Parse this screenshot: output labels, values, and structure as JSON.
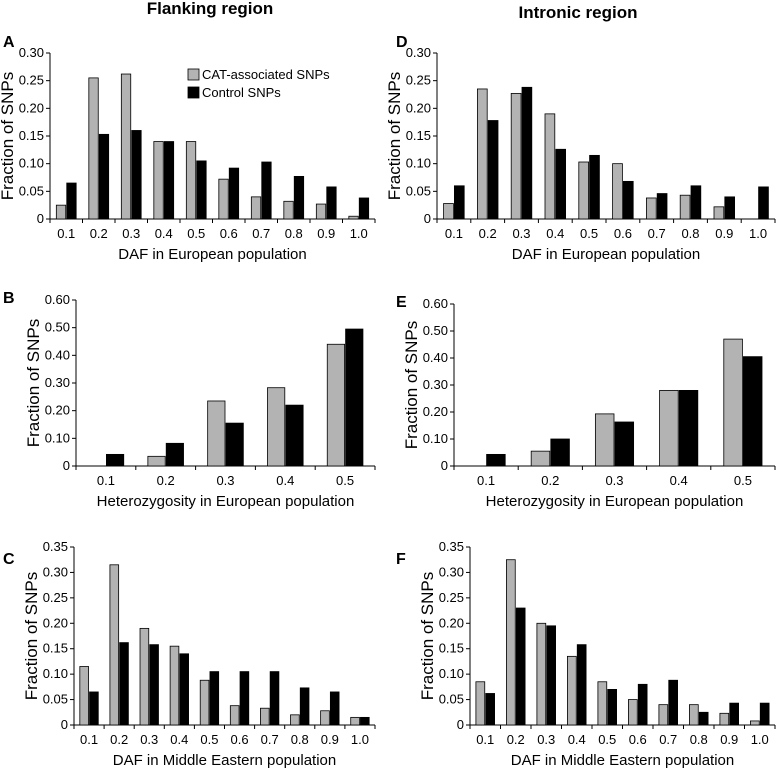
{
  "column_titles": [
    "Flanking region",
    "Intronic region"
  ],
  "ylabel": "Fraction of SNPs",
  "legend": {
    "placement": "top-right of panel A",
    "entries": [
      {
        "name": "CAT-associated SNPs",
        "color": "#b3b3b3"
      },
      {
        "name": "Control SNPs",
        "color": "#000000"
      }
    ]
  },
  "colors": {
    "cat": "#b3b3b3",
    "control": "#000000"
  },
  "chart_data": [
    {
      "panel": "A",
      "type": "bar",
      "xlabel": "DAF in European population",
      "ylabel": "Fraction of SNPs",
      "categories": [
        "0.1",
        "0.2",
        "0.3",
        "0.4",
        "0.5",
        "0.6",
        "0.7",
        "0.8",
        "0.9",
        "1.0"
      ],
      "ylim": [
        0,
        0.3
      ],
      "yticks": [
        "0",
        "0.05",
        "0.10",
        "0.15",
        "0.20",
        "0.25",
        "0.30"
      ],
      "series": [
        {
          "name": "CAT-associated SNPs",
          "values": [
            0.025,
            0.255,
            0.262,
            0.14,
            0.14,
            0.072,
            0.04,
            0.032,
            0.027,
            0.005
          ]
        },
        {
          "name": "Control SNPs",
          "values": [
            0.065,
            0.153,
            0.16,
            0.14,
            0.105,
            0.092,
            0.103,
            0.077,
            0.058,
            0.038
          ]
        }
      ]
    },
    {
      "panel": "D",
      "type": "bar",
      "xlabel": "DAF in European population",
      "ylabel": "Fraction of SNPs",
      "categories": [
        "0.1",
        "0.2",
        "0.3",
        "0.4",
        "0.5",
        "0.6",
        "0.7",
        "0.8",
        "0.9",
        "1.0"
      ],
      "ylim": [
        0,
        0.3
      ],
      "yticks": [
        "0",
        "0.05",
        "0.10",
        "0.15",
        "0.20",
        "0.25",
        "0.30"
      ],
      "series": [
        {
          "name": "CAT-associated SNPs",
          "values": [
            0.028,
            0.235,
            0.227,
            0.19,
            0.103,
            0.1,
            0.038,
            0.043,
            0.022,
            0.0
          ]
        },
        {
          "name": "Control SNPs",
          "values": [
            0.06,
            0.178,
            0.238,
            0.126,
            0.115,
            0.068,
            0.046,
            0.06,
            0.04,
            0.058
          ]
        }
      ]
    },
    {
      "panel": "B",
      "type": "bar",
      "xlabel": "Heterozygosity in European population",
      "ylabel": "Fraction of SNPs",
      "categories": [
        "0.1",
        "0.2",
        "0.3",
        "0.4",
        "0.5"
      ],
      "ylim": [
        0,
        0.6
      ],
      "yticks": [
        "0",
        "0.10",
        "0.20",
        "0.30",
        "0.40",
        "0.50",
        "0.60"
      ],
      "series": [
        {
          "name": "CAT-associated SNPs",
          "values": [
            0.0,
            0.035,
            0.235,
            0.283,
            0.44
          ]
        },
        {
          "name": "Control SNPs",
          "values": [
            0.042,
            0.082,
            0.155,
            0.22,
            0.495
          ]
        }
      ]
    },
    {
      "panel": "E",
      "type": "bar",
      "xlabel": "Heterozygosity in European population",
      "ylabel": "Fraction of SNPs",
      "categories": [
        "0.1",
        "0.2",
        "0.3",
        "0.4",
        "0.5"
      ],
      "ylim": [
        0,
        0.6
      ],
      "yticks": [
        "0",
        "0.10",
        "0.20",
        "0.30",
        "0.40",
        "0.50",
        "0.60"
      ],
      "series": [
        {
          "name": "CAT-associated SNPs",
          "values": [
            0.0,
            0.055,
            0.193,
            0.28,
            0.47
          ]
        },
        {
          "name": "Control SNPs",
          "values": [
            0.043,
            0.1,
            0.163,
            0.28,
            0.405
          ]
        }
      ]
    },
    {
      "panel": "C",
      "type": "bar",
      "xlabel": "DAF in Middle Eastern population",
      "ylabel": "Fraction of SNPs",
      "categories": [
        "0.1",
        "0.2",
        "0.3",
        "0.4",
        "0.5",
        "0.6",
        "0.7",
        "0.8",
        "0.9",
        "1.0"
      ],
      "ylim": [
        0,
        0.35
      ],
      "yticks": [
        "0",
        "0.05",
        "0.10",
        "0.15",
        "0.20",
        "0.25",
        "0.30",
        "0.35"
      ],
      "series": [
        {
          "name": "CAT-associated SNPs",
          "values": [
            0.115,
            0.315,
            0.19,
            0.155,
            0.088,
            0.038,
            0.033,
            0.02,
            0.028,
            0.015
          ]
        },
        {
          "name": "Control SNPs",
          "values": [
            0.065,
            0.162,
            0.158,
            0.14,
            0.105,
            0.105,
            0.105,
            0.073,
            0.065,
            0.015
          ]
        }
      ]
    },
    {
      "panel": "F",
      "type": "bar",
      "xlabel": "DAF in Middle Eastern population",
      "ylabel": "Fraction of SNPs",
      "categories": [
        "0.1",
        "0.2",
        "0.3",
        "0.4",
        "0.5",
        "0.6",
        "0.7",
        "0.8",
        "0.9",
        "1.0"
      ],
      "ylim": [
        0,
        0.35
      ],
      "yticks": [
        "0",
        "0.05",
        "0.10",
        "0.15",
        "0.20",
        "0.25",
        "0.30",
        "0.35"
      ],
      "series": [
        {
          "name": "CAT-associated SNPs",
          "values": [
            0.085,
            0.325,
            0.2,
            0.135,
            0.085,
            0.05,
            0.04,
            0.04,
            0.023,
            0.008
          ]
        },
        {
          "name": "Control SNPs",
          "values": [
            0.062,
            0.23,
            0.195,
            0.158,
            0.07,
            0.08,
            0.088,
            0.025,
            0.043,
            0.043
          ]
        }
      ]
    }
  ]
}
